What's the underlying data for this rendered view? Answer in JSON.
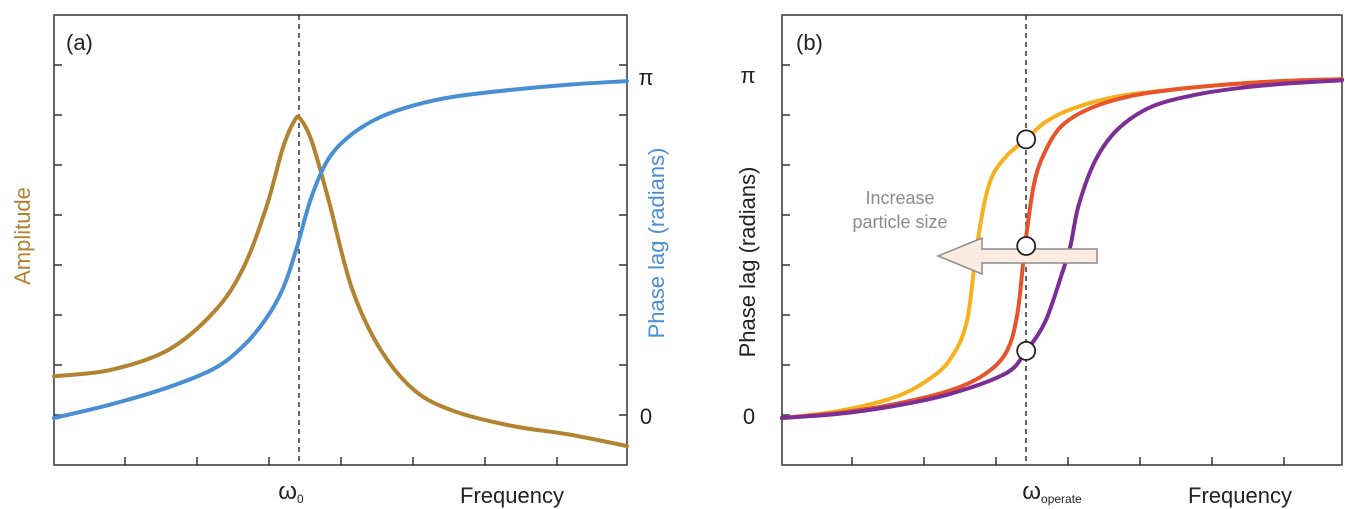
{
  "chart_data": [
    {
      "panel_label": "(a)",
      "type": "line",
      "xlabel": "Frequency",
      "x_marker_label": "ω",
      "x_marker_sub": "0",
      "left_ylabel": "Amplitude",
      "right_ylabel": "Phase lag (radians)",
      "right_ticks": [
        "π",
        "0"
      ],
      "resonance_x": 0.424,
      "xlim": [
        0,
        1
      ],
      "grid": false,
      "colors": {
        "amplitude": "#b28331",
        "phase": "#4a8fd4",
        "axis": "#333333",
        "marker": "#333333"
      },
      "series": [
        {
          "name": "Amplitude",
          "color": "#b28331",
          "axis": "left",
          "x": [
            0.0,
            0.1,
            0.2,
            0.28,
            0.33,
            0.37,
            0.4,
            0.42,
            0.43,
            0.45,
            0.48,
            0.52,
            0.57,
            0.63,
            0.7,
            0.8,
            0.9,
            1.0
          ],
          "y": [
            0.202,
            0.221,
            0.279,
            0.39,
            0.515,
            0.689,
            0.867,
            0.944,
            0.948,
            0.882,
            0.708,
            0.456,
            0.279,
            0.16,
            0.1,
            0.058,
            0.033,
            0.0
          ]
        },
        {
          "name": "Phase lag (radians)",
          "color": "#4a8fd4",
          "axis": "right",
          "y_units": "π",
          "x": [
            0.0,
            0.1,
            0.2,
            0.28,
            0.33,
            0.37,
            0.4,
            0.424,
            0.45,
            0.48,
            0.52,
            0.57,
            0.63,
            0.7,
            0.8,
            0.9,
            1.0
          ],
          "y": [
            0.0,
            0.04,
            0.09,
            0.145,
            0.21,
            0.29,
            0.38,
            0.5,
            0.65,
            0.76,
            0.83,
            0.88,
            0.915,
            0.94,
            0.96,
            0.975,
            0.985
          ]
        }
      ]
    },
    {
      "panel_label": "(b)",
      "type": "line",
      "xlabel": "Frequency",
      "ylabel": "Phase lag (radians)",
      "x_marker_label": "ω",
      "x_marker_sub": "operate",
      "y_ticks": [
        "π",
        "0"
      ],
      "operate_x": 0.436,
      "xlim": [
        0,
        1
      ],
      "ylim_units": "π",
      "grid": false,
      "arrow_annotation": {
        "text": [
          "Increase",
          "particle size"
        ],
        "direction": "left"
      },
      "colors": {
        "arrow_fill": "#fcebe0",
        "arrow_stroke": "#8c8c8c",
        "annotation_text": "#8c8c8c",
        "axis": "#333333"
      },
      "series": [
        {
          "color": "#f7b11e",
          "center": 0.348,
          "operate_point": 0.81,
          "x": [
            0.0,
            0.1,
            0.2,
            0.26,
            0.3,
            0.33,
            0.348,
            0.37,
            0.4,
            0.436,
            0.47,
            0.52,
            0.6,
            0.7,
            0.8,
            0.9,
            1.0
          ],
          "y": [
            0.0,
            0.02,
            0.06,
            0.11,
            0.17,
            0.28,
            0.5,
            0.68,
            0.76,
            0.81,
            0.86,
            0.9,
            0.935,
            0.955,
            0.97,
            0.98,
            0.985
          ]
        },
        {
          "color": "#e8532a",
          "center": 0.434,
          "operate_point": 0.5,
          "x": [
            0.0,
            0.1,
            0.2,
            0.3,
            0.36,
            0.4,
            0.42,
            0.434,
            0.45,
            0.47,
            0.5,
            0.55,
            0.62,
            0.7,
            0.8,
            0.9,
            1.0
          ],
          "y": [
            0.0,
            0.015,
            0.04,
            0.08,
            0.125,
            0.19,
            0.3,
            0.5,
            0.68,
            0.775,
            0.85,
            0.9,
            0.935,
            0.955,
            0.97,
            0.98,
            0.985
          ]
        },
        {
          "color": "#7b2f96",
          "center": 0.515,
          "operate_point": 0.195,
          "x": [
            0.0,
            0.1,
            0.2,
            0.3,
            0.4,
            0.436,
            0.47,
            0.5,
            0.515,
            0.53,
            0.56,
            0.6,
            0.66,
            0.74,
            0.82,
            0.9,
            1.0
          ],
          "y": [
            0.0,
            0.012,
            0.035,
            0.07,
            0.13,
            0.195,
            0.28,
            0.42,
            0.5,
            0.62,
            0.75,
            0.84,
            0.905,
            0.94,
            0.96,
            0.972,
            0.982
          ]
        }
      ]
    }
  ]
}
